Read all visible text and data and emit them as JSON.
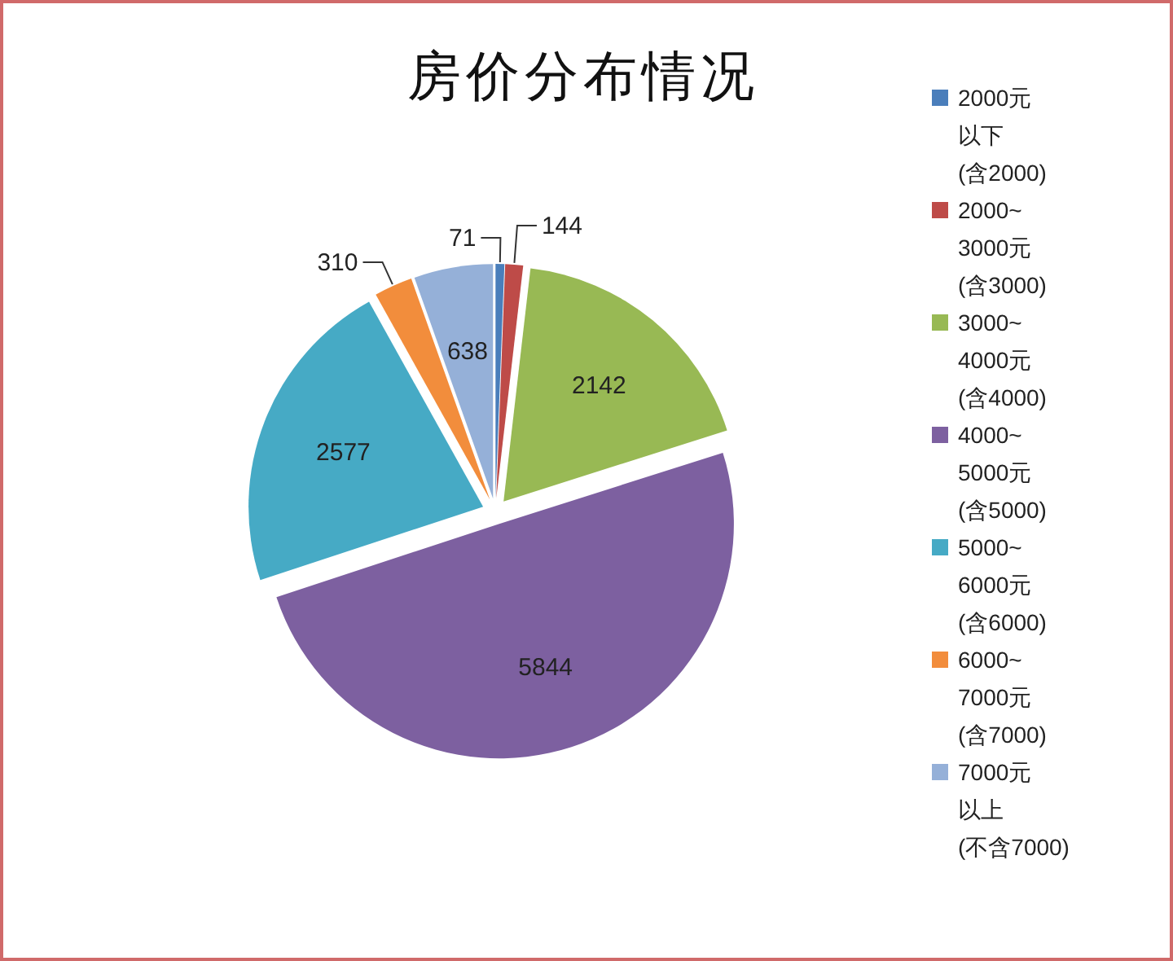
{
  "chart_data": {
    "type": "pie",
    "title": "房价分布情况",
    "categories": [
      "2000元以下(含2000)",
      "2000~3000元(含3000)",
      "3000~4000元(含4000)",
      "4000~5000元(含5000)",
      "5000~6000元(含6000)",
      "6000~7000元(含7000)",
      "7000元以上(不含7000)"
    ],
    "values": [
      71,
      144,
      2142,
      5844,
      2577,
      310,
      638
    ],
    "colors": [
      "#4a7ebb",
      "#be4b48",
      "#98b954",
      "#7d60a0",
      "#46aac5",
      "#f28d3c",
      "#95b0d8"
    ],
    "data_labels": true,
    "legend": "right"
  }
}
